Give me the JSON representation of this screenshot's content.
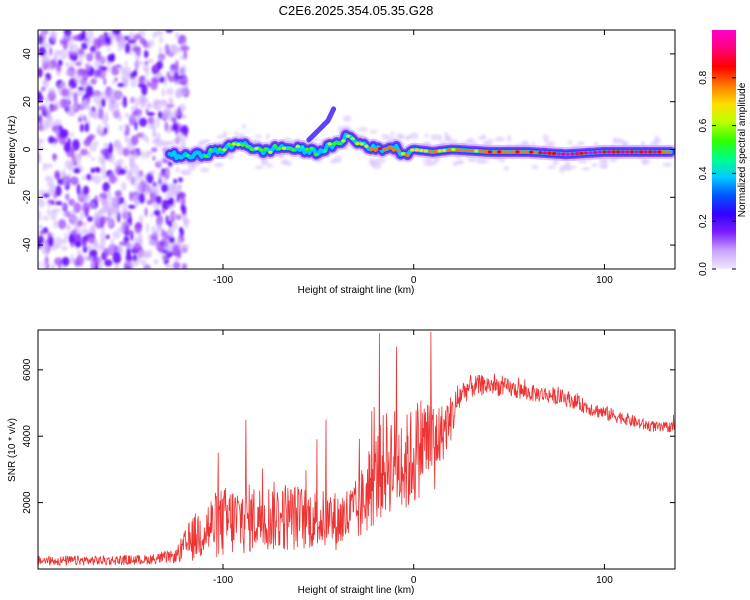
{
  "title": "C2E6.2025.354.05.35.G28",
  "chart_data": [
    {
      "type": "heatmap",
      "name": "spectrogram",
      "xlabel": "Height of straight line (km)",
      "ylabel": "Frequency (Hz)",
      "xlim": [
        -197,
        137
      ],
      "ylim": [
        -50,
        50
      ],
      "xticks": [
        -100,
        0,
        100
      ],
      "yticks": [
        -40,
        -20,
        0,
        20,
        40
      ],
      "colorbar": {
        "label": "Normalized spectral amplitude",
        "ticks": [
          0.0,
          0.2,
          0.4,
          0.6,
          0.8
        ],
        "range": [
          0,
          1
        ],
        "colors": [
          "#f0e8ff",
          "#c9a3ff",
          "#7a1fff",
          "#3300ff",
          "#0055ff",
          "#00ccff",
          "#00ff88",
          "#33ff00",
          "#bbff00",
          "#ffdd00",
          "#ff7700",
          "#ff0000",
          "#ff0077",
          "#ff00cc"
        ]
      },
      "ridge": {
        "x": [
          -128,
          -120,
          -110,
          -100,
          -90,
          -80,
          -70,
          -60,
          -50,
          -45,
          -40,
          -35,
          -30,
          -25,
          -20,
          -10,
          -5,
          0,
          10,
          20,
          40,
          60,
          80,
          100,
          120,
          135
        ],
        "freq": [
          -2,
          -3,
          -2,
          0,
          3,
          -1,
          1,
          0,
          -1,
          1,
          2,
          6,
          3,
          2,
          0,
          1,
          -2,
          0,
          -1,
          0,
          -1,
          -1,
          -2,
          -1,
          -1,
          -1
        ],
        "amplitude": [
          0.3,
          0.4,
          0.45,
          0.55,
          0.6,
          0.55,
          0.6,
          0.55,
          0.5,
          0.55,
          0.6,
          0.65,
          0.6,
          0.65,
          0.75,
          0.8,
          0.7,
          0.7,
          0.75,
          0.7,
          0.8,
          0.85,
          0.95,
          0.9,
          0.85,
          0.8
        ]
      },
      "noise_region_x": [
        -197,
        -125
      ]
    },
    {
      "type": "line",
      "name": "snr",
      "xlabel": "Height of straight line (km)",
      "ylabel": "SNR (10 * v/v)",
      "xlim": [
        -197,
        137
      ],
      "ylim": [
        0,
        7200
      ],
      "xticks": [
        -100,
        0,
        100
      ],
      "yticks": [
        2000,
        4000,
        6000
      ],
      "color": "#ee3333",
      "series": [
        {
          "name": "SNR",
          "x": [
            -197,
            -180,
            -160,
            -140,
            -125,
            -118,
            -110,
            -100,
            -90,
            -80,
            -70,
            -60,
            -50,
            -40,
            -30,
            -20,
            -15,
            -10,
            -5,
            0,
            5,
            10,
            15,
            20,
            25,
            30,
            40,
            50,
            60,
            70,
            80,
            90,
            100,
            110,
            120,
            130,
            137
          ],
          "y": [
            250,
            250,
            260,
            280,
            380,
            800,
            1200,
            1400,
            1500,
            1550,
            1600,
            1550,
            1500,
            1450,
            1700,
            2700,
            3200,
            3300,
            3100,
            3400,
            3900,
            3800,
            4100,
            4600,
            5300,
            5500,
            5550,
            5450,
            5300,
            5250,
            5150,
            4900,
            4700,
            4550,
            4350,
            4250,
            4300
          ],
          "spread": [
            150,
            150,
            150,
            150,
            200,
            600,
            900,
            1100,
            1100,
            1000,
            1100,
            1000,
            900,
            900,
            1000,
            1400,
            1600,
            1600,
            1500,
            1600,
            1500,
            1300,
            900,
            700,
            400,
            350,
            300,
            280,
            260,
            250,
            240,
            230,
            220,
            200,
            180,
            160,
            160
          ],
          "spikes": [
            {
              "x": -88,
              "y": 4500
            },
            {
              "x": -46,
              "y": 4500
            },
            {
              "x": -18,
              "y": 7100
            },
            {
              "x": -9,
              "y": 6700
            },
            {
              "x": 9,
              "y": 7150
            },
            {
              "x": 11,
              "y": 2400
            }
          ]
        }
      ]
    }
  ]
}
